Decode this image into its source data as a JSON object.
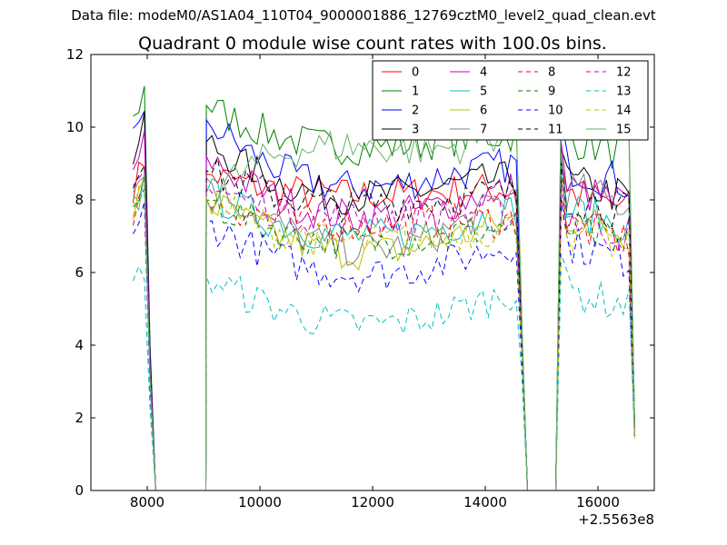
{
  "header": {
    "file_title": "Data file: modeM0/AS1A04_110T04_9000001886_12769cztM0_level2_quad_clean.evt"
  },
  "chart_data": {
    "type": "line",
    "title": "Quadrant 0 module wise count rates with 100.0s bins.",
    "xlabel": "",
    "ylabel": "",
    "x_offset_label": "+2.5563e8",
    "xlim": [
      7000,
      17000
    ],
    "ylim": [
      0,
      12
    ],
    "xticks": [
      8000,
      10000,
      12000,
      14000,
      16000
    ],
    "xtick_labels": [
      "8000",
      "10000",
      "12000",
      "14000",
      "16000"
    ],
    "yticks": [
      0,
      2,
      4,
      6,
      8,
      10,
      12
    ],
    "ytick_labels": [
      "0",
      "2",
      "4",
      "6",
      "8",
      "10",
      "12"
    ],
    "grid": false,
    "legend_position": "top-right",
    "legend_columns": 4,
    "segments": [
      {
        "start": 7750,
        "end": 8150,
        "step": 100
      },
      {
        "start": 9050,
        "end": 14750,
        "step": 100
      },
      {
        "start": 15250,
        "end": 16650,
        "step": 100
      }
    ],
    "profiles": {
      "orbit_a": [
        8.8,
        9.2,
        9.6,
        3.5,
        0.0
      ],
      "orbit_b_ends": [
        0.0,
        10.5
      ],
      "orbit_b_edges": [
        3.5,
        0.0
      ],
      "orbit_c_edges": [
        0.0,
        10.0,
        1.4
      ]
    },
    "series": [
      {
        "name": "0",
        "color": "#ff0000",
        "dash": "solid",
        "level": 8.2,
        "left": 8.7,
        "right": 8.3
      },
      {
        "name": "1",
        "color": "#008000",
        "dash": "solid",
        "level": 9.6,
        "left": 10.6,
        "right": 9.8
      },
      {
        "name": "2",
        "color": "#0000ff",
        "dash": "solid",
        "level": 8.6,
        "left": 10.2,
        "right": 9.0
      },
      {
        "name": "3",
        "color": "#000000",
        "dash": "solid",
        "level": 8.3,
        "left": 9.6,
        "right": 8.6
      },
      {
        "name": "4",
        "color": "#bf00bf",
        "dash": "solid",
        "level": 7.8,
        "left": 9.2,
        "right": 8.4
      },
      {
        "name": "5",
        "color": "#00bfbf",
        "dash": "solid",
        "level": 7.2,
        "left": 8.2,
        "right": 7.8
      },
      {
        "name": "6",
        "color": "#bfbf00",
        "dash": "solid",
        "level": 6.8,
        "left": 8.0,
        "right": 7.6
      },
      {
        "name": "7",
        "color": "#808080",
        "dash": "solid",
        "level": 7.0,
        "left": 8.6,
        "right": 8.4
      },
      {
        "name": "8",
        "color": "#ff0000",
        "dash": "dashed",
        "level": 7.4,
        "left": 8.0,
        "right": 7.4
      },
      {
        "name": "9",
        "color": "#008000",
        "dash": "dashed",
        "level": 7.0,
        "left": 8.0,
        "right": 7.3
      },
      {
        "name": "10",
        "color": "#0000ff",
        "dash": "dashed",
        "level": 6.2,
        "left": 7.4,
        "right": 6.9
      },
      {
        "name": "11",
        "color": "#000000",
        "dash": "dashed",
        "level": 8.0,
        "left": 8.8,
        "right": 8.2
      },
      {
        "name": "12",
        "color": "#bf00bf",
        "dash": "dashed",
        "level": 7.6,
        "left": 8.4,
        "right": 7.6
      },
      {
        "name": "13",
        "color": "#00bfbf",
        "dash": "dashed",
        "level": 4.8,
        "left": 5.9,
        "right": 5.6
      },
      {
        "name": "14",
        "color": "#bfbf00",
        "dash": "dashed",
        "level": 7.0,
        "left": 8.1,
        "right": 7.2
      },
      {
        "name": "15",
        "color": "#66b266",
        "dash": "solid",
        "level": 9.4,
        "left": 8.0,
        "right": 10.3
      }
    ]
  }
}
